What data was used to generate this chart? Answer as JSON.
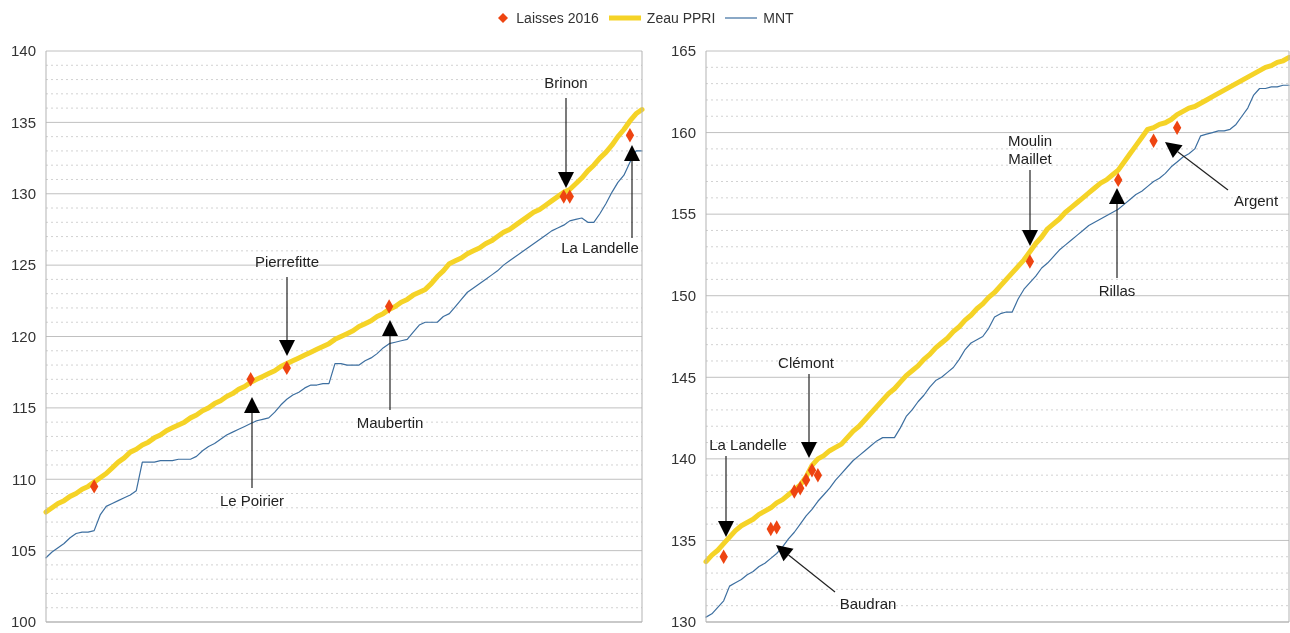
{
  "chart_data": [
    {
      "type": "line",
      "grid": "y",
      "legend": "top",
      "categories": [
        null,
        null,
        null,
        null,
        null,
        null,
        null,
        null,
        null,
        null,
        null,
        null,
        null,
        null,
        null,
        null,
        null,
        null,
        null,
        null,
        null,
        null,
        null,
        null,
        null,
        null,
        null,
        null,
        null,
        null,
        null,
        null,
        null,
        null,
        null,
        null,
        null,
        null,
        null,
        null,
        null,
        null,
        null,
        null,
        null,
        null,
        null,
        null,
        null,
        null,
        null,
        null,
        null,
        null,
        null,
        null,
        null,
        null,
        null,
        null,
        null,
        null,
        null,
        null,
        null,
        null,
        null,
        null,
        null,
        null,
        null,
        null,
        null,
        null,
        null,
        null,
        null,
        null,
        null,
        null,
        null,
        null,
        null,
        null,
        null,
        null,
        null,
        null,
        null,
        null,
        null,
        null,
        null,
        null,
        null,
        null,
        null,
        null,
        null,
        null
      ],
      "ylim": [
        100,
        140
      ],
      "yticks": [
        100,
        {
          "value": 101,
          "label": null
        },
        {
          "value": 102,
          "label": null
        },
        {
          "value": 103,
          "label": null
        },
        {
          "value": 104,
          "label": null
        },
        105,
        {
          "value": 106,
          "label": null
        },
        {
          "value": 107,
          "label": null
        },
        {
          "value": 108,
          "label": null
        },
        {
          "value": 109,
          "label": null
        },
        110,
        {
          "value": 111,
          "label": null
        },
        {
          "value": 112,
          "label": null
        },
        {
          "value": 113,
          "label": null
        },
        {
          "value": 114,
          "label": null
        },
        115,
        {
          "value": 116,
          "label": null
        },
        {
          "value": 117,
          "label": null
        },
        {
          "value": 118,
          "label": null
        },
        {
          "value": 119,
          "label": null
        },
        120,
        {
          "value": 121,
          "label": null
        },
        {
          "value": 122,
          "label": null
        },
        {
          "value": 123,
          "label": null
        },
        {
          "value": 124,
          "label": null
        },
        125,
        {
          "value": 126,
          "label": null
        },
        {
          "value": 127,
          "label": null
        },
        {
          "value": 128,
          "label": null
        },
        {
          "value": 129,
          "label": null
        },
        130,
        {
          "value": 131,
          "label": null
        },
        {
          "value": 132,
          "label": null
        },
        {
          "value": 133,
          "label": null
        },
        {
          "value": 134,
          "label": null
        },
        135,
        {
          "value": 136,
          "label": null
        },
        {
          "value": 137,
          "label": null
        },
        {
          "value": 138,
          "label": null
        },
        {
          "value": 139,
          "label": null
        },
        140
      ],
      "series": [
        {
          "name": "Laisses 2016",
          "type": "scatter",
          "marker": "diamond",
          "color": "#ee4411",
          "values": [
            null,
            null,
            null,
            null,
            null,
            null,
            null,
            null,
            109.5,
            null,
            null,
            null,
            null,
            null,
            null,
            null,
            null,
            null,
            null,
            null,
            null,
            null,
            null,
            null,
            null,
            null,
            null,
            null,
            null,
            null,
            null,
            null,
            null,
            null,
            117.0,
            null,
            null,
            null,
            null,
            null,
            117.8,
            null,
            null,
            null,
            null,
            null,
            null,
            null,
            null,
            null,
            null,
            null,
            null,
            null,
            null,
            null,
            null,
            122.1,
            null,
            null,
            null,
            null,
            null,
            null,
            null,
            null,
            null,
            null,
            null,
            null,
            null,
            null,
            null,
            null,
            null,
            null,
            null,
            null,
            null,
            null,
            null,
            null,
            null,
            null,
            null,
            null,
            129.8,
            129.8,
            null,
            null,
            null,
            null,
            null,
            null,
            null,
            null,
            null,
            134.1,
            null,
            null
          ]
        },
        {
          "name": "Zeau PPRI",
          "color": "#f5d327",
          "values": [
            107.7,
            108.0,
            108.3,
            108.5,
            108.8,
            109.0,
            109.3,
            109.5,
            109.8,
            110.1,
            110.4,
            110.8,
            111.2,
            111.5,
            111.9,
            112.1,
            112.4,
            112.6,
            112.9,
            113.1,
            113.4,
            113.6,
            113.8,
            114.0,
            114.3,
            114.5,
            114.8,
            115.0,
            115.3,
            115.5,
            115.8,
            116.0,
            116.3,
            116.5,
            116.8,
            117.0,
            117.2,
            117.4,
            117.6,
            117.9,
            118.1,
            118.3,
            118.5,
            118.7,
            118.9,
            119.1,
            119.3,
            119.5,
            119.8,
            120.0,
            120.2,
            120.4,
            120.7,
            120.9,
            121.1,
            121.4,
            121.6,
            121.9,
            122.1,
            122.4,
            122.6,
            122.9,
            123.1,
            123.3,
            123.7,
            124.2,
            124.6,
            125.1,
            125.3,
            125.5,
            125.8,
            126.0,
            126.2,
            126.5,
            126.7,
            127.0,
            127.3,
            127.5,
            127.8,
            128.1,
            128.4,
            128.7,
            128.9,
            129.2,
            129.5,
            129.8,
            130.1,
            130.3,
            130.7,
            131.1,
            131.6,
            132.0,
            132.5,
            132.9,
            133.4,
            134.0,
            134.5,
            135.1,
            135.6,
            135.9
          ]
        },
        {
          "name": "MNT",
          "color": "#3d6fa0",
          "values": [
            104.5,
            104.9,
            105.2,
            105.5,
            105.9,
            106.2,
            106.3,
            106.3,
            106.4,
            107.5,
            108.1,
            108.3,
            108.5,
            108.7,
            108.9,
            109.2,
            111.2,
            111.2,
            111.2,
            111.3,
            111.3,
            111.3,
            111.4,
            111.4,
            111.4,
            111.6,
            112.0,
            112.3,
            112.5,
            112.8,
            113.1,
            113.3,
            113.5,
            113.7,
            113.9,
            114.1,
            114.2,
            114.3,
            114.7,
            115.2,
            115.6,
            115.9,
            116.1,
            116.4,
            116.6,
            116.6,
            116.7,
            116.7,
            118.1,
            118.1,
            118.0,
            118.0,
            118.0,
            118.3,
            118.5,
            118.8,
            119.2,
            119.5,
            119.6,
            119.7,
            119.8,
            120.3,
            120.8,
            121.0,
            121.0,
            121.0,
            121.4,
            121.6,
            122.1,
            122.6,
            123.1,
            123.4,
            123.7,
            124.0,
            124.3,
            124.6,
            125.0,
            125.3,
            125.6,
            125.9,
            126.2,
            126.5,
            126.8,
            127.1,
            127.4,
            127.6,
            127.8,
            128.1,
            128.2,
            128.3,
            128.0,
            128.0,
            128.6,
            129.3,
            130.1,
            130.8,
            131.3,
            132.2,
            133.0,
            133.0
          ]
        }
      ],
      "annotations": [
        "Le Poirier",
        "Pierrefitte",
        "Maubertin",
        "Brinon",
        "La Landelle"
      ]
    },
    {
      "type": "line",
      "grid": "y",
      "categories": [
        null,
        null,
        null,
        null,
        null,
        null,
        null,
        null,
        null,
        null,
        null,
        null,
        null,
        null,
        null,
        null,
        null,
        null,
        null,
        null,
        null,
        null,
        null,
        null,
        null,
        null,
        null,
        null,
        null,
        null,
        null,
        null,
        null,
        null,
        null,
        null,
        null,
        null,
        null,
        null,
        null,
        null,
        null,
        null,
        null,
        null,
        null,
        null,
        null,
        null,
        null,
        null,
        null,
        null,
        null,
        null,
        null,
        null,
        null,
        null,
        null,
        null,
        null,
        null,
        null,
        null,
        null,
        null,
        null,
        null,
        null,
        null,
        null,
        null,
        null,
        null,
        null,
        null,
        null,
        null,
        null,
        null,
        null,
        null,
        null,
        null,
        null,
        null,
        null,
        null,
        null,
        null,
        null,
        null,
        null,
        null,
        null,
        null,
        null,
        null
      ],
      "ylim": [
        130,
        165
      ],
      "yticks": [
        130,
        {
          "value": 131,
          "label": null
        },
        {
          "value": 132,
          "label": null
        },
        {
          "value": 133,
          "label": null
        },
        {
          "value": 134,
          "label": null
        },
        135,
        {
          "value": 136,
          "label": null
        },
        {
          "value": 137,
          "label": null
        },
        {
          "value": 138,
          "label": null
        },
        {
          "value": 139,
          "label": null
        },
        140,
        {
          "value": 141,
          "label": null
        },
        {
          "value": 142,
          "label": null
        },
        {
          "value": 143,
          "label": null
        },
        {
          "value": 144,
          "label": null
        },
        145,
        {
          "value": 146,
          "label": null
        },
        {
          "value": 147,
          "label": null
        },
        {
          "value": 148,
          "label": null
        },
        {
          "value": 149,
          "label": null
        },
        150,
        {
          "value": 151,
          "label": null
        },
        {
          "value": 152,
          "label": null
        },
        {
          "value": 153,
          "label": null
        },
        {
          "value": 154,
          "label": null
        },
        155,
        {
          "value": 156,
          "label": null
        },
        {
          "value": 157,
          "label": null
        },
        {
          "value": 158,
          "label": null
        },
        {
          "value": 159,
          "label": null
        },
        160,
        {
          "value": 161,
          "label": null
        },
        {
          "value": 162,
          "label": null
        },
        {
          "value": 163,
          "label": null
        },
        {
          "value": 164,
          "label": null
        },
        165
      ],
      "series": [
        {
          "type": "scatter",
          "marker": "diamond",
          "color": "#ee4411",
          "values": [
            null,
            null,
            null,
            134.0,
            null,
            null,
            null,
            null,
            null,
            null,
            null,
            135.7,
            135.8,
            null,
            null,
            138.0,
            138.2,
            138.7,
            139.3,
            139.0,
            null,
            null,
            null,
            null,
            null,
            null,
            null,
            null,
            null,
            null,
            null,
            null,
            null,
            null,
            null,
            null,
            null,
            null,
            null,
            null,
            null,
            null,
            null,
            null,
            null,
            null,
            null,
            null,
            null,
            null,
            null,
            null,
            null,
            null,
            null,
            152.1,
            null,
            null,
            null,
            null,
            null,
            null,
            null,
            null,
            null,
            null,
            null,
            null,
            null,
            null,
            157.1,
            null,
            null,
            null,
            null,
            null,
            159.5,
            null,
            null,
            null,
            160.3,
            null,
            null,
            null,
            null,
            null,
            null,
            null,
            null,
            null,
            null,
            null,
            null,
            null,
            null,
            null,
            null,
            null,
            null,
            null
          ]
        },
        {
          "color": "#f5d327",
          "values": [
            133.7,
            134.1,
            134.4,
            134.8,
            135.2,
            135.6,
            135.9,
            136.1,
            136.3,
            136.6,
            136.8,
            137.0,
            137.3,
            137.5,
            137.8,
            138.1,
            138.4,
            138.9,
            139.6,
            140.0,
            140.2,
            140.5,
            140.7,
            140.9,
            141.3,
            141.7,
            142.0,
            142.4,
            142.8,
            143.2,
            143.6,
            144.0,
            144.3,
            144.7,
            145.1,
            145.4,
            145.7,
            146.1,
            146.4,
            146.8,
            147.1,
            147.4,
            147.8,
            148.1,
            148.5,
            148.8,
            149.2,
            149.5,
            149.9,
            150.2,
            150.6,
            151.0,
            151.4,
            151.8,
            152.2,
            152.7,
            153.2,
            153.6,
            154.1,
            154.4,
            154.7,
            155.1,
            155.4,
            155.7,
            156.0,
            156.3,
            156.6,
            156.9,
            157.1,
            157.4,
            157.7,
            158.2,
            158.7,
            159.2,
            159.7,
            160.2,
            160.3,
            160.5,
            160.6,
            160.8,
            161.1,
            161.3,
            161.5,
            161.6,
            161.8,
            162.0,
            162.2,
            162.4,
            162.6,
            162.8,
            163.0,
            163.2,
            163.4,
            163.6,
            163.8,
            164.0,
            164.1,
            164.3,
            164.4,
            164.6
          ]
        },
        {
          "color": "#3d6fa0",
          "values": [
            130.3,
            130.5,
            130.9,
            131.3,
            132.2,
            132.4,
            132.6,
            132.9,
            133.1,
            133.4,
            133.6,
            133.9,
            134.2,
            134.6,
            135.1,
            135.5,
            136.0,
            136.5,
            136.9,
            137.4,
            137.8,
            138.2,
            138.7,
            139.1,
            139.5,
            139.9,
            140.2,
            140.5,
            140.8,
            141.1,
            141.3,
            141.3,
            141.3,
            141.9,
            142.6,
            143.0,
            143.5,
            143.9,
            144.4,
            144.8,
            145.0,
            145.3,
            145.6,
            146.1,
            146.7,
            147.1,
            147.3,
            147.5,
            148.0,
            148.7,
            148.9,
            149.0,
            149.0,
            149.8,
            150.4,
            150.8,
            151.2,
            151.7,
            152.0,
            152.4,
            152.8,
            153.1,
            153.4,
            153.7,
            154.0,
            154.3,
            154.5,
            154.7,
            154.9,
            155.1,
            155.3,
            155.6,
            155.9,
            156.2,
            156.4,
            156.7,
            157.0,
            157.2,
            157.5,
            157.9,
            158.2,
            158.5,
            158.7,
            159.0,
            159.8,
            159.9,
            160.0,
            160.1,
            160.1,
            160.2,
            160.5,
            161.0,
            161.5,
            162.3,
            162.7,
            162.7,
            162.8,
            162.8,
            162.9,
            162.9
          ]
        }
      ],
      "annotations": [
        "La Landelle",
        "Baudran",
        "Clémont",
        "Moulin Maillet",
        "Rillas",
        "Argent"
      ]
    }
  ]
}
